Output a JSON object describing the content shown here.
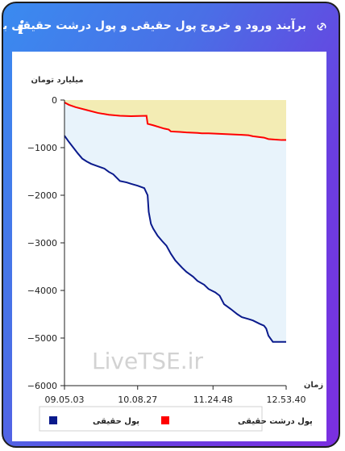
{
  "header": {
    "title": "برآیند ورود و خروج پول حقیقی و پول درشت حقیقی به بازار",
    "info_icon": "info-icon",
    "link_icon": "link-icon"
  },
  "watermark": "LiveTSE.ir",
  "colors": {
    "real_money": "#0a1a8c",
    "big_real_money": "#ff0000",
    "fill_blue": "#e8f3fb",
    "fill_yellow": "#f3ecb4"
  },
  "chart_data": {
    "type": "area",
    "ylabel": "میلیارد تومان",
    "xlabel": "زمان",
    "ylim": [
      -6000,
      0
    ],
    "y_ticks": [
      0,
      -1000,
      -2000,
      -3000,
      -4000,
      -5000,
      -6000
    ],
    "y_tick_labels": [
      "0",
      "−1000",
      "−2000",
      "−3000",
      "−4000",
      "−5000",
      "−6000"
    ],
    "x_tick_labels": [
      "09.05.03",
      "10.08.27",
      "11.24.48",
      "12.53.40"
    ],
    "x_tick_positions": [
      0,
      0.33,
      0.67,
      1.0
    ],
    "legend": [
      "پول حقیقی",
      "پول درشت حقیقی"
    ],
    "legend_position": "bottom",
    "series": [
      {
        "name": "پول درشت حقیقی",
        "color": "#ff0000",
        "x": [
          0,
          0.02,
          0.05,
          0.1,
          0.15,
          0.2,
          0.25,
          0.3,
          0.37,
          0.375,
          0.4,
          0.45,
          0.47,
          0.48,
          0.52,
          0.55,
          0.6,
          0.62,
          0.65,
          0.7,
          0.75,
          0.8,
          0.83,
          0.85,
          0.9,
          0.92,
          0.95,
          0.98,
          1.0
        ],
        "values": [
          -50,
          -100,
          -150,
          -210,
          -270,
          -310,
          -330,
          -340,
          -330,
          -500,
          -530,
          -600,
          -620,
          -660,
          -670,
          -680,
          -690,
          -700,
          -700,
          -710,
          -720,
          -730,
          -740,
          -760,
          -790,
          -820,
          -830,
          -840,
          -840
        ]
      },
      {
        "name": "پول حقیقی",
        "color": "#0a1a8c",
        "x": [
          0,
          0.02,
          0.04,
          0.06,
          0.08,
          0.1,
          0.12,
          0.15,
          0.18,
          0.2,
          0.22,
          0.25,
          0.28,
          0.3,
          0.33,
          0.36,
          0.375,
          0.38,
          0.39,
          0.4,
          0.42,
          0.44,
          0.46,
          0.48,
          0.5,
          0.53,
          0.55,
          0.58,
          0.6,
          0.63,
          0.65,
          0.68,
          0.7,
          0.72,
          0.75,
          0.78,
          0.8,
          0.83,
          0.85,
          0.88,
          0.9,
          0.91,
          0.92,
          0.94,
          1.0
        ],
        "values": [
          -750,
          -880,
          -1000,
          -1120,
          -1230,
          -1290,
          -1340,
          -1390,
          -1440,
          -1510,
          -1560,
          -1700,
          -1730,
          -1760,
          -1800,
          -1850,
          -2000,
          -2350,
          -2600,
          -2700,
          -2850,
          -2960,
          -3060,
          -3230,
          -3370,
          -3520,
          -3610,
          -3710,
          -3800,
          -3880,
          -3970,
          -4040,
          -4110,
          -4290,
          -4390,
          -4500,
          -4560,
          -4600,
          -4630,
          -4700,
          -4740,
          -4800,
          -4950,
          -5080,
          -5080
        ]
      }
    ]
  }
}
